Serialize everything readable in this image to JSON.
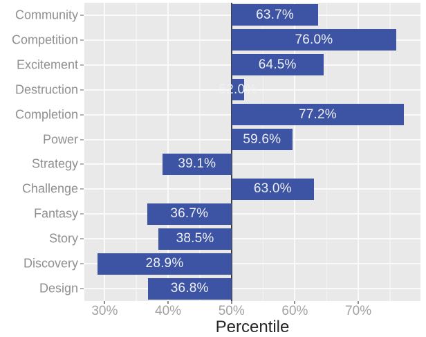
{
  "chart_data": {
    "type": "bar",
    "orientation": "horizontal",
    "title": "",
    "xlabel": "Percentile",
    "ylabel": "",
    "categories": [
      "Community",
      "Competition",
      "Excitement",
      "Destruction",
      "Completion",
      "Power",
      "Strategy",
      "Challenge",
      "Fantasy",
      "Story",
      "Discovery",
      "Design"
    ],
    "values": [
      63.7,
      76.0,
      64.5,
      52.0,
      77.2,
      59.6,
      39.1,
      63.0,
      36.7,
      38.5,
      28.9,
      36.8
    ],
    "value_labels": [
      "63.7%",
      "76.0%",
      "64.5%",
      "52.0%",
      "77.2%",
      "59.6%",
      "39.1%",
      "63.0%",
      "36.7%",
      "38.5%",
      "28.9%",
      "36.8%"
    ],
    "baseline": 50,
    "xlim": [
      26.8,
      79.8
    ],
    "x_major_ticks": [
      30,
      40,
      50,
      60,
      70
    ],
    "x_major_tick_labels": [
      "30%",
      "40%",
      "50%",
      "60%",
      "70%"
    ],
    "x_minor_ticks": [
      35,
      45,
      55,
      65,
      75
    ],
    "grid": true,
    "legend_position": "none",
    "colors": {
      "bar": "#3d54a5",
      "panel": "#e9e9e9",
      "grid_major": "#fafafa",
      "grid_minor": "#f2f2f2",
      "baseline_line": "#3f3f3f",
      "category_label": "#8f8f8f",
      "tick_label": "#a2a2a2",
      "axis_title": "#262626",
      "value_label": "#eef0f3"
    }
  }
}
